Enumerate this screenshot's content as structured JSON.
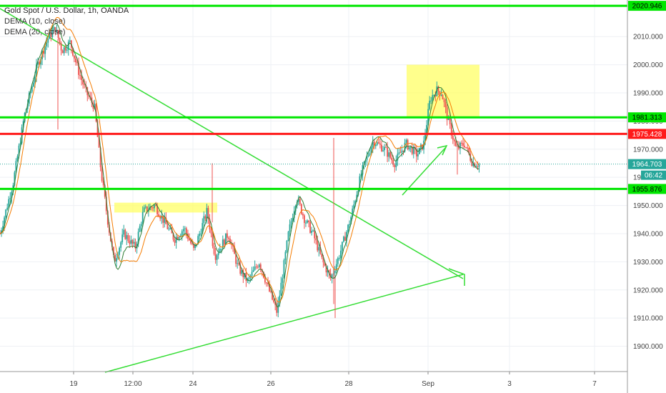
{
  "header": {
    "title": "Gold Spot / U.S. Dollar, 1h, OANDA",
    "indicators": [
      "DEMA (10, close)",
      "DEMA (20, close)"
    ]
  },
  "colors": {
    "candle_up": "#26a69a",
    "candle_down": "#ef5350",
    "dema10": "#2e7d32",
    "dema20": "#f57c00",
    "hline_green": "#00e600",
    "hline_red": "#ff1a1a",
    "trendline": "#33dd33",
    "zone_fill": "#ffff66",
    "current_price": "#26a69a"
  },
  "chart_data": {
    "type": "candlestick",
    "symbol": "Gold Spot / U.S. Dollar",
    "interval": "1h",
    "source": "OANDA",
    "x_ticks": [
      "19",
      "12:00",
      "24",
      "26",
      "28",
      "Sep",
      "3",
      "7"
    ],
    "y_ticks": [
      "1900.000",
      "1910.000",
      "1920.000",
      "1930.000",
      "1940.000",
      "1950.000",
      "1960.000",
      "1970.000",
      "1980.000",
      "1990.000",
      "2000.000",
      "2010.000"
    ],
    "ylim": [
      1891,
      2023
    ],
    "horizontal_levels": [
      {
        "value": 2020.946,
        "label": "2020.946",
        "color": "green"
      },
      {
        "value": 1981.313,
        "label": "1981.313",
        "color": "green"
      },
      {
        "value": 1975.428,
        "label": "1975.428",
        "color": "red"
      },
      {
        "value": 1955.876,
        "label": "1955.876",
        "color": "green"
      }
    ],
    "current_price": {
      "value": 1964.703,
      "label": "1964.703",
      "countdown": "06:42"
    },
    "price_path": [
      {
        "x": 0.0,
        "y": 1940
      },
      {
        "x": 0.8,
        "y": 1958
      },
      {
        "x": 1.5,
        "y": 1982
      },
      {
        "x": 2.3,
        "y": 2000
      },
      {
        "x": 3.0,
        "y": 2010
      },
      {
        "x": 3.4,
        "y": 2013
      },
      {
        "x": 3.8,
        "y": 2005
      },
      {
        "x": 4.3,
        "y": 2008
      },
      {
        "x": 4.8,
        "y": 1998
      },
      {
        "x": 5.3,
        "y": 1990
      },
      {
        "x": 5.8,
        "y": 1985
      },
      {
        "x": 6.2,
        "y": 1962
      },
      {
        "x": 6.6,
        "y": 1945
      },
      {
        "x": 7.0,
        "y": 1930
      },
      {
        "x": 7.6,
        "y": 1940
      },
      {
        "x": 8.3,
        "y": 1935
      },
      {
        "x": 8.8,
        "y": 1948
      },
      {
        "x": 9.5,
        "y": 1950
      },
      {
        "x": 10.0,
        "y": 1945
      },
      {
        "x": 10.7,
        "y": 1938
      },
      {
        "x": 11.3,
        "y": 1942
      },
      {
        "x": 11.9,
        "y": 1934
      },
      {
        "x": 12.7,
        "y": 1948
      },
      {
        "x": 13.2,
        "y": 1932
      },
      {
        "x": 14.0,
        "y": 1940
      },
      {
        "x": 14.6,
        "y": 1928
      },
      {
        "x": 15.2,
        "y": 1923
      },
      {
        "x": 15.9,
        "y": 1930
      },
      {
        "x": 16.5,
        "y": 1920
      },
      {
        "x": 17.0,
        "y": 1912
      },
      {
        "x": 17.7,
        "y": 1940
      },
      {
        "x": 18.2,
        "y": 1953
      },
      {
        "x": 18.7,
        "y": 1945
      },
      {
        "x": 19.2,
        "y": 1940
      },
      {
        "x": 19.8,
        "y": 1930
      },
      {
        "x": 20.3,
        "y": 1924
      },
      {
        "x": 20.8,
        "y": 1932
      },
      {
        "x": 21.5,
        "y": 1945
      },
      {
        "x": 22.2,
        "y": 1962
      },
      {
        "x": 22.9,
        "y": 1973
      },
      {
        "x": 23.6,
        "y": 1970
      },
      {
        "x": 24.2,
        "y": 1965
      },
      {
        "x": 24.9,
        "y": 1972
      },
      {
        "x": 25.6,
        "y": 1968
      },
      {
        "x": 26.0,
        "y": 1972
      },
      {
        "x": 26.4,
        "y": 1988
      },
      {
        "x": 26.8,
        "y": 1991
      },
      {
        "x": 27.1,
        "y": 1990
      },
      {
        "x": 27.5,
        "y": 1980
      },
      {
        "x": 28.0,
        "y": 1970
      },
      {
        "x": 28.5,
        "y": 1972
      },
      {
        "x": 29.0,
        "y": 1965
      },
      {
        "x": 29.4,
        "y": 1964.7
      }
    ],
    "x_range": [
      0,
      38.5
    ]
  }
}
